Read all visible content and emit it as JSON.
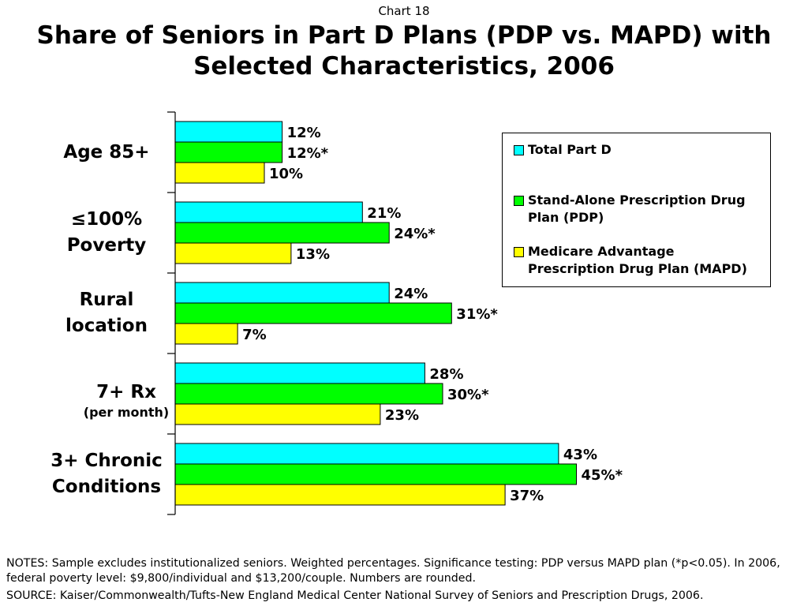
{
  "header": {
    "chart_number": "Chart 18",
    "title_line1": "Share of Seniors in Part D Plans (PDP vs. MAPD) with",
    "title_line2": "Selected Characteristics, 2006"
  },
  "chart_data": {
    "type": "bar",
    "orientation": "horizontal",
    "title": "Share of Seniors in Part D Plans (PDP vs. MAPD) with Selected Characteristics, 2006",
    "categories": [
      {
        "line1": "Age 85+",
        "line2": "",
        "sub": ""
      },
      {
        "line1": "≤100%",
        "line2": "Poverty",
        "sub": ""
      },
      {
        "line1": "Rural",
        "line2": "location",
        "sub": ""
      },
      {
        "line1": "7+ Rx",
        "line2": "",
        "sub": "(per month)"
      },
      {
        "line1": "3+ Chronic",
        "line2": "Conditions",
        "sub": ""
      }
    ],
    "series": [
      {
        "name": "Total Part D",
        "color": "#00ffff",
        "values": [
          12,
          21,
          24,
          28,
          43
        ],
        "labels": [
          "12%",
          "21%",
          "24%",
          "28%",
          "43%"
        ]
      },
      {
        "name": "Stand-Alone Prescription Drug Plan (PDP)",
        "color": "#00ff00",
        "values": [
          12,
          24,
          31,
          30,
          45
        ],
        "labels": [
          "12%*",
          "24%*",
          "31%*",
          "30%*",
          "45%*"
        ]
      },
      {
        "name": "Medicare Advantage Prescription Drug Plan (MAPD)",
        "color": "#ffff00",
        "values": [
          10,
          13,
          7,
          23,
          37
        ],
        "labels": [
          "10%",
          "13%",
          "7%",
          "23%",
          "37%"
        ]
      }
    ],
    "xlim": [
      0,
      66
    ],
    "grid": false,
    "legend_position": "top-right"
  },
  "legend": {
    "items": [
      {
        "line1": "Total Part D",
        "line2": "",
        "color": "#00ffff"
      },
      {
        "line1": "Stand-Alone Prescription Drug",
        "line2": "Plan (PDP)",
        "color": "#00ff00"
      },
      {
        "line1": "Medicare Advantage",
        "line2": "Prescription Drug Plan (MAPD)",
        "color": "#ffff00"
      }
    ]
  },
  "footer": {
    "notes": "NOTES: Sample excludes institutionalized seniors. Weighted percentages. Significance testing: PDP versus MAPD plan (*p<0.05). In 2006, federal poverty level: $9,800/individual and $13,200/couple. Numbers are rounded.",
    "source": "SOURCE: Kaiser/Commonwealth/Tufts-New England Medical Center National Survey of Seniors and Prescription Drugs, 2006."
  }
}
